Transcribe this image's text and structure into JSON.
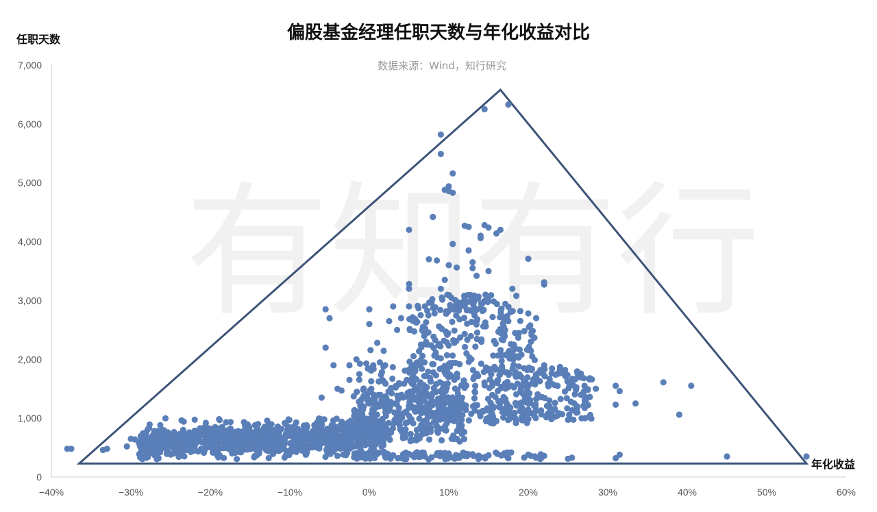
{
  "colors": {
    "points": "#5a7fb8",
    "triangle": "#3d5478",
    "axis": "#cfcfcf"
  },
  "watermark": "有知有行",
  "chart_data": {
    "type": "scatter",
    "title": "偏股基金经理任职天数与年化收益对比",
    "subtitle": "数据来源：Wind，知行研究",
    "xlabel": "年化收益",
    "ylabel": "任职天数",
    "xlim": [
      -0.4,
      0.6
    ],
    "ylim": [
      0,
      7000
    ],
    "x_ticks": [
      "−40%",
      "−30%",
      "−20%",
      "−10%",
      "0%",
      "10%",
      "20%",
      "30%",
      "40%",
      "50%",
      "60%"
    ],
    "y_ticks": [
      "0",
      "1,000",
      "2,000",
      "3,000",
      "4,000",
      "5,000",
      "6,000",
      "7,000"
    ],
    "grid": false,
    "legend": "none",
    "triangle": [
      [
        -0.365,
        230
      ],
      [
        0.165,
        6580
      ],
      [
        0.55,
        230
      ]
    ],
    "points": [
      [
        -0.38,
        480
      ],
      [
        -0.375,
        480
      ],
      [
        -0.335,
        460
      ],
      [
        -0.33,
        480
      ],
      [
        -0.305,
        520
      ],
      [
        -0.3,
        650
      ],
      [
        -0.295,
        640
      ],
      [
        -0.285,
        620
      ],
      [
        -0.28,
        430
      ],
      [
        -0.27,
        600
      ],
      [
        -0.265,
        560
      ],
      [
        -0.26,
        800
      ],
      [
        -0.255,
        540
      ],
      [
        -0.25,
        650
      ],
      [
        -0.245,
        480
      ],
      [
        -0.24,
        700
      ],
      [
        -0.235,
        610
      ],
      [
        -0.23,
        560
      ],
      [
        -0.225,
        750
      ],
      [
        -0.22,
        500
      ],
      [
        -0.215,
        680
      ],
      [
        -0.21,
        600
      ],
      [
        -0.205,
        560
      ],
      [
        -0.2,
        700
      ],
      [
        -0.195,
        520
      ],
      [
        -0.19,
        640
      ],
      [
        -0.185,
        850
      ],
      [
        -0.18,
        600
      ],
      [
        -0.175,
        700
      ],
      [
        -0.17,
        560
      ],
      [
        -0.165,
        780
      ],
      [
        -0.16,
        600
      ],
      [
        -0.155,
        500
      ],
      [
        -0.15,
        720
      ],
      [
        -0.145,
        640
      ],
      [
        -0.14,
        900
      ],
      [
        -0.135,
        560
      ],
      [
        -0.13,
        800
      ],
      [
        -0.125,
        680
      ],
      [
        -0.12,
        600
      ],
      [
        -0.115,
        750
      ],
      [
        -0.11,
        520
      ],
      [
        -0.105,
        900
      ],
      [
        -0.1,
        700
      ],
      [
        -0.095,
        640
      ],
      [
        -0.09,
        820
      ],
      [
        -0.085,
        560
      ],
      [
        -0.08,
        700
      ],
      [
        -0.075,
        600
      ],
      [
        -0.07,
        780
      ],
      [
        -0.065,
        500
      ],
      [
        -0.06,
        900
      ],
      [
        -0.055,
        660
      ],
      [
        -0.05,
        560
      ],
      [
        -0.045,
        720
      ],
      [
        -0.04,
        800
      ],
      [
        -0.035,
        600
      ],
      [
        -0.03,
        700
      ],
      [
        -0.025,
        540
      ],
      [
        -0.02,
        860
      ],
      [
        -0.015,
        640
      ],
      [
        -0.01,
        580
      ],
      [
        -0.005,
        700
      ],
      [
        -0.25,
        600
      ],
      [
        -0.23,
        690
      ],
      [
        -0.21,
        720
      ],
      [
        -0.19,
        570
      ],
      [
        -0.17,
        660
      ],
      [
        -0.15,
        610
      ],
      [
        -0.13,
        740
      ],
      [
        -0.11,
        650
      ],
      [
        -0.09,
        580
      ],
      [
        -0.07,
        680
      ],
      [
        -0.05,
        620
      ],
      [
        -0.03,
        760
      ],
      [
        -0.12,
        420
      ],
      [
        -0.08,
        380
      ],
      [
        -0.04,
        360
      ],
      [
        -0.16,
        450
      ],
      [
        -0.055,
        2850
      ],
      [
        -0.05,
        2700
      ],
      [
        -0.055,
        2200
      ],
      [
        -0.045,
        1900
      ],
      [
        -0.04,
        1500
      ],
      [
        -0.035,
        1470
      ],
      [
        -0.06,
        1350
      ],
      [
        -0.025,
        1900
      ],
      [
        -0.025,
        1650
      ],
      [
        0.0,
        2850
      ],
      [
        0.0,
        2600
      ],
      [
        0.01,
        2280
      ],
      [
        0.005,
        1900
      ],
      [
        0.02,
        1900
      ],
      [
        0.015,
        1250
      ],
      [
        0.03,
        2900
      ],
      [
        0.025,
        2650
      ],
      [
        0.035,
        2500
      ],
      [
        0.04,
        2700
      ],
      [
        0.05,
        2900
      ],
      [
        0.05,
        3280
      ],
      [
        0.05,
        3200
      ],
      [
        0.05,
        4200
      ],
      [
        0.065,
        2250
      ],
      [
        0.07,
        2900
      ],
      [
        0.075,
        3700
      ],
      [
        0.08,
        4420
      ],
      [
        0.085,
        3680
      ],
      [
        0.09,
        5490
      ],
      [
        0.09,
        5820
      ],
      [
        0.095,
        4880
      ],
      [
        0.1,
        4940
      ],
      [
        0.1,
        4860
      ],
      [
        0.105,
        4830
      ],
      [
        0.105,
        5160
      ],
      [
        0.105,
        3960
      ],
      [
        0.1,
        3600
      ],
      [
        0.11,
        3560
      ],
      [
        0.09,
        3200
      ],
      [
        0.095,
        3350
      ],
      [
        0.12,
        4270
      ],
      [
        0.125,
        4250
      ],
      [
        0.125,
        3850
      ],
      [
        0.13,
        3650
      ],
      [
        0.13,
        3550
      ],
      [
        0.135,
        3420
      ],
      [
        0.14,
        4060
      ],
      [
        0.14,
        4100
      ],
      [
        0.145,
        4280
      ],
      [
        0.15,
        4240
      ],
      [
        0.16,
        4140
      ],
      [
        0.165,
        4200
      ],
      [
        0.15,
        3500
      ],
      [
        0.145,
        6250
      ],
      [
        0.175,
        6330
      ],
      [
        0.2,
        3710
      ],
      [
        0.22,
        3270
      ],
      [
        0.22,
        3310
      ],
      [
        0.21,
        2700
      ],
      [
        0.18,
        3200
      ],
      [
        0.185,
        3080
      ],
      [
        0.19,
        2820
      ],
      [
        0.2,
        2780
      ],
      [
        0.195,
        2480
      ],
      [
        0.205,
        2050
      ],
      [
        0.22,
        1900
      ],
      [
        0.24,
        1870
      ],
      [
        0.245,
        1750
      ],
      [
        0.255,
        1600
      ],
      [
        0.26,
        1480
      ],
      [
        0.27,
        1450
      ],
      [
        0.275,
        1480
      ],
      [
        0.28,
        1660
      ],
      [
        0.285,
        1500
      ],
      [
        0.31,
        1550
      ],
      [
        0.31,
        1230
      ],
      [
        0.315,
        1460
      ],
      [
        0.335,
        1250
      ],
      [
        0.37,
        1610
      ],
      [
        0.39,
        1060
      ],
      [
        0.405,
        1550
      ],
      [
        0.45,
        350
      ],
      [
        0.55,
        350
      ],
      [
        0.31,
        320
      ],
      [
        0.315,
        380
      ],
      [
        0.25,
        310
      ],
      [
        0.255,
        330
      ],
      [
        0.22,
        360
      ],
      [
        0.2,
        380
      ],
      [
        0.17,
        380
      ],
      [
        0.175,
        320
      ],
      [
        0.14,
        340
      ],
      [
        0.15,
        370
      ],
      [
        0.12,
        360
      ],
      [
        0.1,
        400
      ],
      [
        0.095,
        360
      ],
      [
        0.05,
        390
      ],
      [
        0.06,
        420
      ],
      [
        0.07,
        350
      ],
      [
        0.02,
        350
      ],
      [
        0.03,
        370
      ],
      [
        0.0,
        330
      ],
      [
        -0.01,
        360
      ]
    ]
  }
}
